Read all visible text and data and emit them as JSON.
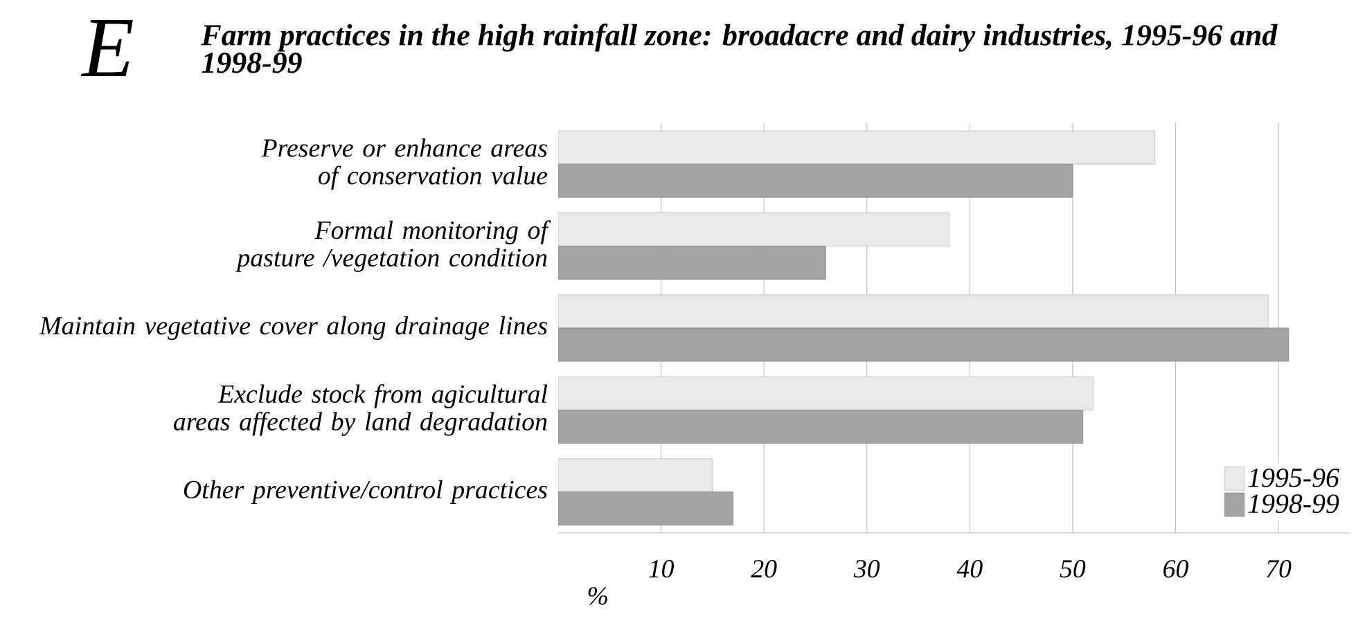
{
  "chart_data": {
    "type": "bar",
    "orientation": "horizontal",
    "title": "Farm practices in the high rainfall zone: broadacre and dairy industries, 1995-96 and 1998-99",
    "annotations": [
      "E"
    ],
    "xlabel": "%",
    "categories": [
      "Preserve or enhance areas of conservation value",
      "Formal monitoring of pasture /vegetation condition",
      "Maintain vegetative cover along drainage lines",
      "Exclude stock from agicultural areas affected by land degradation",
      "Other preventive/control practices"
    ],
    "series": [
      {
        "name": "1995-96",
        "color": "#e8e9eb",
        "values": [
          58,
          38,
          69,
          52,
          15
        ]
      },
      {
        "name": "1998-99",
        "color": "#a3a4a6",
        "values": [
          50,
          26,
          71,
          51,
          17
        ]
      }
    ],
    "xlim": [
      0,
      77
    ],
    "xticks": [
      10,
      20,
      30,
      40,
      50,
      60,
      70
    ],
    "grid": "x",
    "legend": "bottom right"
  }
}
